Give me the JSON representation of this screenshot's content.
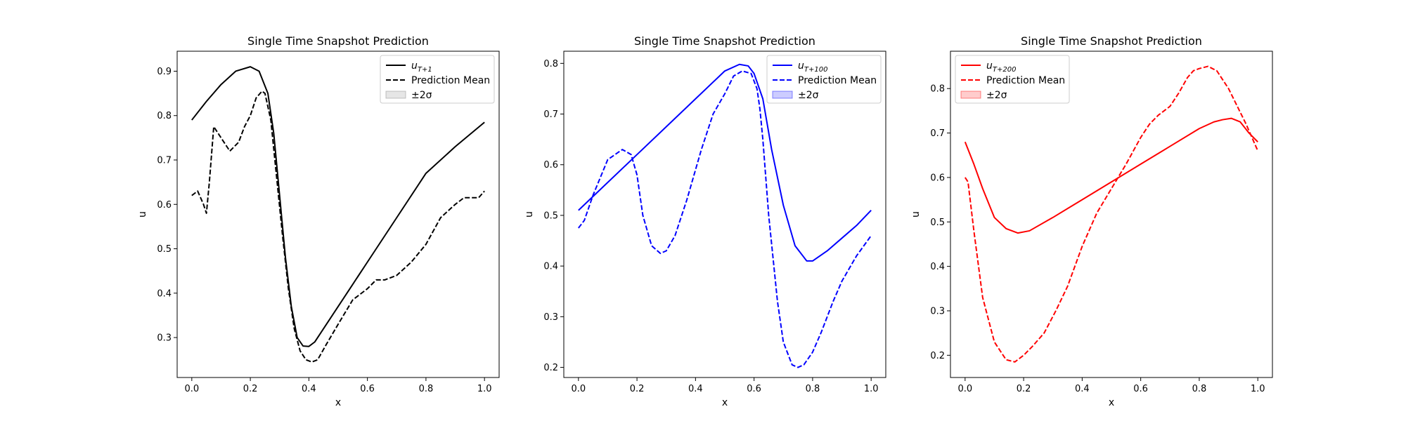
{
  "chart_data": [
    {
      "type": "line",
      "title": "Single Time Snapshot Prediction",
      "xlabel": "x",
      "ylabel": "u",
      "xlim": [
        -0.05,
        1.05
      ],
      "ylim": [
        0.21,
        0.945
      ],
      "xticks": [
        0.0,
        0.2,
        0.4,
        0.6,
        0.8,
        1.0
      ],
      "xtick_labels": [
        "0.0",
        "0.2",
        "0.4",
        "0.6",
        "0.8",
        "1.0"
      ],
      "yticks": [
        0.3,
        0.4,
        0.5,
        0.6,
        0.7,
        0.8,
        0.9
      ],
      "ytick_labels": [
        "0.3",
        "0.4",
        "0.5",
        "0.6",
        "0.7",
        "0.8",
        "0.9"
      ],
      "legend_position": "top-right",
      "grid": false,
      "color": "#000000",
      "band_color": "#808080",
      "series": [
        {
          "name": "u_{T+1}",
          "style": "solid",
          "x": [
            0.0,
            0.05,
            0.1,
            0.15,
            0.2,
            0.23,
            0.26,
            0.28,
            0.3,
            0.32,
            0.34,
            0.36,
            0.38,
            0.4,
            0.42,
            0.45,
            0.5,
            0.55,
            0.6,
            0.7,
            0.8,
            0.9,
            1.0
          ],
          "y": [
            0.79,
            0.832,
            0.87,
            0.9,
            0.91,
            0.9,
            0.85,
            0.76,
            0.62,
            0.48,
            0.37,
            0.3,
            0.281,
            0.28,
            0.29,
            0.32,
            0.37,
            0.42,
            0.47,
            0.57,
            0.67,
            0.73,
            0.785
          ]
        },
        {
          "name": "Prediction Mean",
          "style": "dashed",
          "x": [
            0.0,
            0.02,
            0.04,
            0.05,
            0.06,
            0.075,
            0.1,
            0.13,
            0.16,
            0.18,
            0.2,
            0.22,
            0.24,
            0.25,
            0.27,
            0.29,
            0.31,
            0.33,
            0.35,
            0.37,
            0.39,
            0.41,
            0.43,
            0.46,
            0.5,
            0.55,
            0.6,
            0.63,
            0.66,
            0.7,
            0.75,
            0.8,
            0.85,
            0.9,
            0.93,
            0.95,
            0.98,
            1.0
          ],
          "y": [
            0.62,
            0.63,
            0.6,
            0.58,
            0.65,
            0.775,
            0.75,
            0.72,
            0.74,
            0.775,
            0.8,
            0.84,
            0.855,
            0.85,
            0.79,
            0.66,
            0.53,
            0.41,
            0.32,
            0.27,
            0.25,
            0.245,
            0.25,
            0.285,
            0.33,
            0.385,
            0.41,
            0.43,
            0.43,
            0.44,
            0.47,
            0.51,
            0.57,
            0.6,
            0.615,
            0.615,
            0.615,
            0.63
          ]
        },
        {
          "name": "±2σ",
          "style": "band",
          "x": [],
          "y": []
        }
      ]
    },
    {
      "type": "line",
      "title": "Single Time Snapshot Prediction",
      "xlabel": "x",
      "ylabel": "u",
      "xlim": [
        -0.05,
        1.05
      ],
      "ylim": [
        0.18,
        0.824
      ],
      "xticks": [
        0.0,
        0.2,
        0.4,
        0.6,
        0.8,
        1.0
      ],
      "xtick_labels": [
        "0.0",
        "0.2",
        "0.4",
        "0.6",
        "0.8",
        "1.0"
      ],
      "yticks": [
        0.2,
        0.3,
        0.4,
        0.5,
        0.6,
        0.7,
        0.8
      ],
      "ytick_labels": [
        "0.2",
        "0.3",
        "0.4",
        "0.5",
        "0.6",
        "0.7",
        "0.8"
      ],
      "legend_position": "top-right",
      "grid": false,
      "color": "#0000ff",
      "band_color": "#0000ff",
      "series": [
        {
          "name": "u_{T+100}",
          "style": "solid",
          "x": [
            0.0,
            0.1,
            0.2,
            0.3,
            0.4,
            0.5,
            0.55,
            0.58,
            0.6,
            0.63,
            0.66,
            0.7,
            0.74,
            0.78,
            0.8,
            0.85,
            0.9,
            0.95,
            1.0
          ],
          "y": [
            0.51,
            0.565,
            0.62,
            0.675,
            0.73,
            0.785,
            0.798,
            0.795,
            0.78,
            0.73,
            0.63,
            0.52,
            0.44,
            0.41,
            0.41,
            0.43,
            0.455,
            0.48,
            0.51
          ]
        },
        {
          "name": "Prediction Mean",
          "style": "dashed",
          "x": [
            0.0,
            0.02,
            0.05,
            0.1,
            0.15,
            0.18,
            0.2,
            0.22,
            0.25,
            0.28,
            0.3,
            0.33,
            0.37,
            0.42,
            0.46,
            0.5,
            0.53,
            0.56,
            0.59,
            0.61,
            0.62,
            0.63,
            0.65,
            0.68,
            0.7,
            0.73,
            0.75,
            0.77,
            0.8,
            0.83,
            0.87,
            0.9,
            0.95,
            1.0
          ],
          "y": [
            0.475,
            0.49,
            0.54,
            0.61,
            0.63,
            0.62,
            0.58,
            0.5,
            0.44,
            0.425,
            0.43,
            0.46,
            0.53,
            0.63,
            0.7,
            0.74,
            0.775,
            0.785,
            0.78,
            0.75,
            0.71,
            0.65,
            0.5,
            0.33,
            0.25,
            0.205,
            0.2,
            0.205,
            0.23,
            0.27,
            0.33,
            0.37,
            0.42,
            0.46
          ]
        },
        {
          "name": "±2σ",
          "style": "band",
          "x": [],
          "y": []
        }
      ]
    },
    {
      "type": "line",
      "title": "Single Time Snapshot Prediction",
      "xlabel": "x",
      "ylabel": "u",
      "xlim": [
        -0.05,
        1.05
      ],
      "ylim": [
        0.15,
        0.884
      ],
      "xticks": [
        0.0,
        0.2,
        0.4,
        0.6,
        0.8,
        1.0
      ],
      "xtick_labels": [
        "0.0",
        "0.2",
        "0.4",
        "0.6",
        "0.8",
        "1.0"
      ],
      "yticks": [
        0.2,
        0.3,
        0.4,
        0.5,
        0.6,
        0.7,
        0.8
      ],
      "ytick_labels": [
        "0.2",
        "0.3",
        "0.4",
        "0.5",
        "0.6",
        "0.7",
        "0.8"
      ],
      "legend_position": "top-left",
      "grid": false,
      "color": "#ff0000",
      "band_color": "#ff0000",
      "series": [
        {
          "name": "u_{T+200}",
          "style": "solid",
          "x": [
            0.0,
            0.03,
            0.06,
            0.1,
            0.14,
            0.18,
            0.22,
            0.3,
            0.4,
            0.5,
            0.6,
            0.7,
            0.8,
            0.85,
            0.88,
            0.91,
            0.94,
            0.97,
            1.0
          ],
          "y": [
            0.68,
            0.63,
            0.575,
            0.51,
            0.485,
            0.475,
            0.48,
            0.51,
            0.55,
            0.59,
            0.63,
            0.67,
            0.71,
            0.725,
            0.73,
            0.733,
            0.725,
            0.7,
            0.68
          ]
        },
        {
          "name": "Prediction Mean",
          "style": "dashed",
          "x": [
            0.0,
            0.01,
            0.03,
            0.06,
            0.1,
            0.14,
            0.17,
            0.2,
            0.23,
            0.27,
            0.31,
            0.35,
            0.4,
            0.45,
            0.5,
            0.55,
            0.6,
            0.63,
            0.66,
            0.7,
            0.73,
            0.76,
            0.78,
            0.8,
            0.83,
            0.86,
            0.9,
            0.93,
            0.96,
            0.98,
            1.0
          ],
          "y": [
            0.6,
            0.59,
            0.48,
            0.33,
            0.23,
            0.19,
            0.185,
            0.2,
            0.22,
            0.25,
            0.3,
            0.355,
            0.445,
            0.52,
            0.575,
            0.63,
            0.69,
            0.72,
            0.74,
            0.76,
            0.79,
            0.825,
            0.84,
            0.845,
            0.85,
            0.84,
            0.8,
            0.76,
            0.72,
            0.69,
            0.66
          ]
        },
        {
          "name": "±2σ",
          "style": "band",
          "x": [],
          "y": []
        }
      ]
    }
  ]
}
